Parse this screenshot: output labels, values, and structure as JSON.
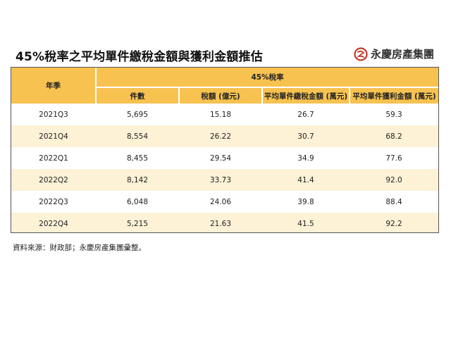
{
  "title": "45%稅率之平均單件繳稅金額與獲利金額推估",
  "logo": {
    "text": "永慶房產集團",
    "icon": "yungching-logo-icon",
    "color": "#c0392b"
  },
  "colors": {
    "header_fill": "#f7c250",
    "band_fill": "#fdf1d6"
  },
  "table": {
    "year_header": "年季",
    "group_header": "45%稅率",
    "columns": [
      "件數",
      "稅額 (億元)",
      "平均單件繳稅金額 (萬元)",
      "平均單件獲利金額 (萬元)"
    ],
    "rows": [
      {
        "period": "2021Q3",
        "cases": "5,695",
        "tax": "15.18",
        "avg_tax": "26.7",
        "avg_profit": "59.3"
      },
      {
        "period": "2021Q4",
        "cases": "8,554",
        "tax": "26.22",
        "avg_tax": "30.7",
        "avg_profit": "68.2"
      },
      {
        "period": "2022Q1",
        "cases": "8,455",
        "tax": "29.54",
        "avg_tax": "34.9",
        "avg_profit": "77.6"
      },
      {
        "period": "2022Q2",
        "cases": "8,142",
        "tax": "33.73",
        "avg_tax": "41.4",
        "avg_profit": "92.0"
      },
      {
        "period": "2022Q3",
        "cases": "6,048",
        "tax": "24.06",
        "avg_tax": "39.8",
        "avg_profit": "88.4"
      },
      {
        "period": "2022Q4",
        "cases": "5,215",
        "tax": "21.63",
        "avg_tax": "41.5",
        "avg_profit": "92.2"
      }
    ]
  },
  "source": "資料來源：財政部；永慶房產集團彙整。"
}
